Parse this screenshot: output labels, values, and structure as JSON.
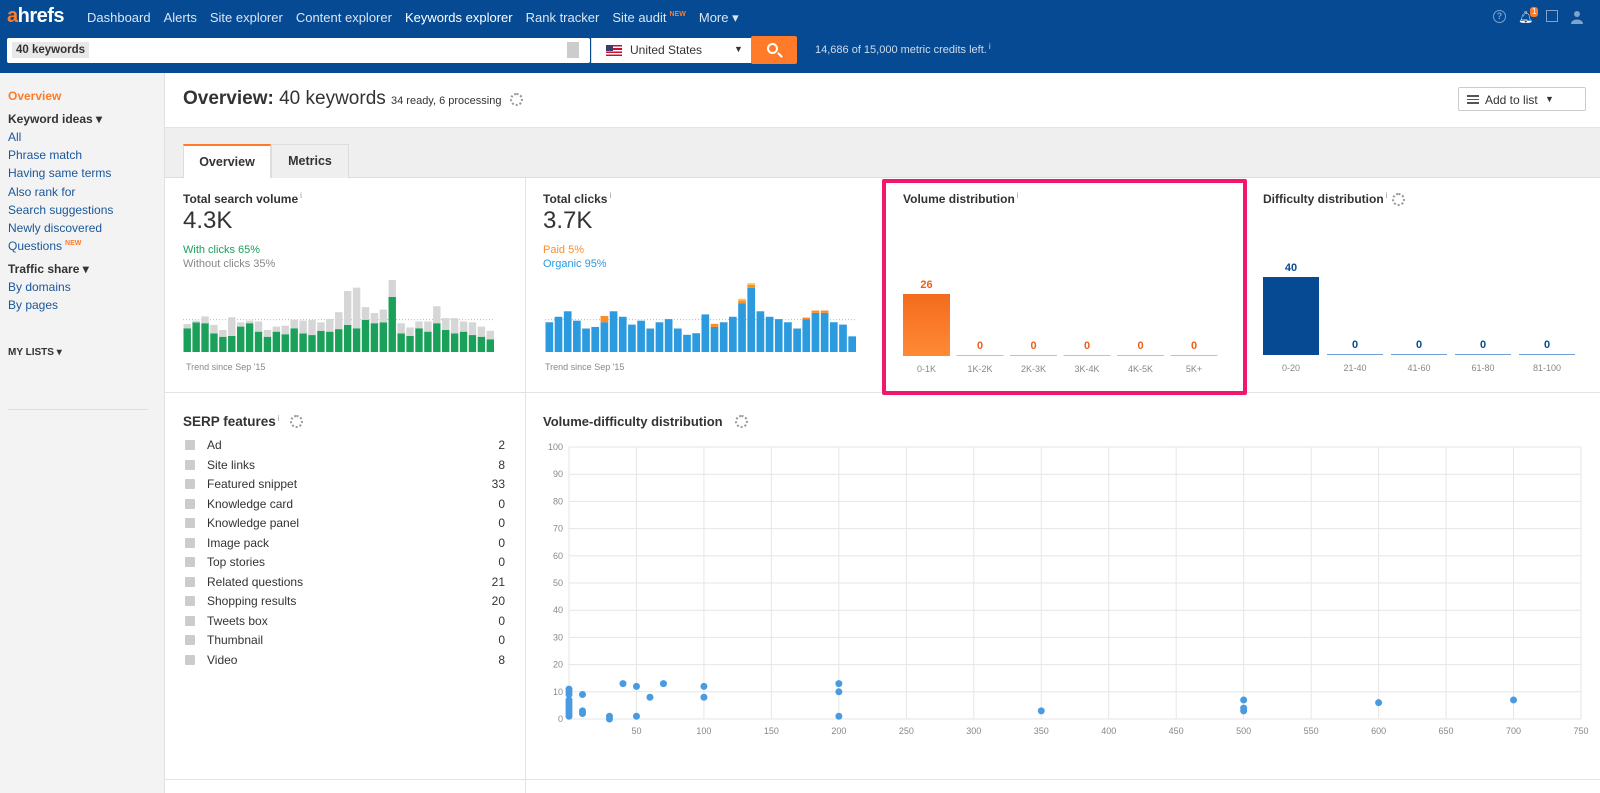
{
  "app": {
    "logo": "ahrefs"
  },
  "nav": {
    "items": [
      "Dashboard",
      "Alerts",
      "Site explorer",
      "Content explorer",
      "Keywords explorer",
      "Rank tracker",
      "Site audit",
      "More ▾"
    ],
    "site_audit_badge": "NEW",
    "notification_count": "1"
  },
  "search": {
    "token": "40 keywords",
    "country": "United States",
    "credits": "14,686 of 15,000 metric credits left."
  },
  "sidebar": {
    "overview": "Overview",
    "keyword_ideas": "Keyword ideas ▾",
    "keyword_items": [
      "All",
      "Phrase match",
      "Having same terms",
      "Also rank for",
      "Search suggestions",
      "Newly discovered",
      "Questions"
    ],
    "questions_badge": "NEW",
    "traffic_share": "Traffic share ▾",
    "traffic_items": [
      "By domains",
      "By pages"
    ],
    "my_lists": "MY LISTS ▾"
  },
  "header": {
    "title_bold": "Overview:",
    "title_rest": " 40 keywords",
    "status": "34 ready, 6 processing",
    "add_to_list": "Add to list"
  },
  "tabs": [
    "Overview",
    "Metrics"
  ],
  "cards": {
    "search_volume": {
      "title": "Total search volume",
      "value": "4.3K",
      "with_clicks": "With clicks 65%",
      "without_clicks": "Without clicks 35%",
      "trend": "Trend since Sep '15"
    },
    "clicks": {
      "title": "Total clicks",
      "value": "3.7K",
      "paid": "Paid 5%",
      "organic": "Organic 95%",
      "trend": "Trend since Sep '15"
    },
    "volume_distribution": {
      "title": "Volume distribution"
    },
    "difficulty_distribution": {
      "title": "Difficulty distribution"
    },
    "serp_features": {
      "title": "SERP features"
    },
    "vd_distribution": {
      "title": "Volume-difficulty distribution"
    }
  },
  "serp_features": [
    {
      "label": "Ad",
      "count": "2",
      "icon": "ad-icon"
    },
    {
      "label": "Site links",
      "count": "8",
      "icon": "link-icon"
    },
    {
      "label": "Featured snippet",
      "count": "33",
      "icon": "quote-icon"
    },
    {
      "label": "Knowledge card",
      "count": "0",
      "icon": "card-icon"
    },
    {
      "label": "Knowledge panel",
      "count": "0",
      "icon": "panel-icon"
    },
    {
      "label": "Image pack",
      "count": "0",
      "icon": "image-pack-icon"
    },
    {
      "label": "Top stories",
      "count": "0",
      "icon": "stories-icon"
    },
    {
      "label": "Related questions",
      "count": "21",
      "icon": "question-icon"
    },
    {
      "label": "Shopping results",
      "count": "20",
      "icon": "cart-icon"
    },
    {
      "label": "Tweets box",
      "count": "0",
      "icon": "twitter-icon"
    },
    {
      "label": "Thumbnail",
      "count": "0",
      "icon": "thumbnail-icon"
    },
    {
      "label": "Video",
      "count": "8",
      "icon": "video-icon"
    }
  ],
  "colors": {
    "brand": "#054a93",
    "accent": "#ff7b29",
    "green": "#1ba05a",
    "blue": "#2b9ade",
    "highlight": "#f0186c"
  },
  "chart_data": [
    {
      "type": "bar",
      "id": "search-volume-trend",
      "stacked": true,
      "series": [
        {
          "color": "#1ba05a",
          "values": [
            28,
            35,
            34,
            22,
            18,
            19,
            30,
            34,
            24,
            18,
            24,
            21,
            28,
            22,
            20,
            25,
            24,
            27,
            32,
            28,
            38,
            34,
            35,
            65,
            22,
            19,
            28,
            24,
            34,
            26,
            22,
            24,
            20,
            18,
            15
          ]
        },
        {
          "color": "#d6d6d6",
          "values": [
            5,
            2,
            8,
            10,
            8,
            22,
            5,
            3,
            12,
            8,
            6,
            10,
            10,
            15,
            18,
            10,
            15,
            20,
            40,
            48,
            15,
            12,
            15,
            20,
            12,
            10,
            8,
            12,
            20,
            14,
            18,
            12,
            15,
            12,
            10
          ]
        }
      ]
    },
    {
      "type": "bar",
      "id": "clicks-trend",
      "stacked": true,
      "series": [
        {
          "color": "#2b9ade",
          "values": [
            38,
            45,
            52,
            40,
            30,
            32,
            38,
            52,
            45,
            35,
            40,
            30,
            38,
            42,
            30,
            22,
            24,
            48,
            32,
            38,
            45,
            62,
            82,
            52,
            45,
            42,
            38,
            30,
            42,
            50,
            50,
            38,
            35,
            20
          ]
        },
        {
          "color": "#ff8c2a",
          "values": [
            0,
            0,
            0,
            0,
            0,
            0,
            8,
            0,
            0,
            0,
            0,
            0,
            0,
            0,
            0,
            0,
            0,
            0,
            4,
            0,
            0,
            4,
            4,
            0,
            0,
            0,
            0,
            0,
            2,
            3,
            3,
            0,
            0,
            0
          ]
        },
        {
          "color": "#f2d13d",
          "values": [
            0,
            0,
            0,
            0,
            0,
            0,
            0,
            0,
            0,
            0,
            0,
            0,
            0,
            0,
            0,
            0,
            0,
            0,
            0,
            0,
            0,
            2,
            2,
            0,
            0,
            0,
            0,
            0,
            0,
            0,
            0,
            0,
            0,
            0
          ]
        }
      ]
    },
    {
      "type": "bar",
      "title": "Volume distribution",
      "categories": [
        "0-1K",
        "1K-2K",
        "2K-3K",
        "3K-4K",
        "4K-5K",
        "5K+"
      ],
      "values": [
        26,
        0,
        0,
        0,
        0,
        0
      ],
      "color": "#ff7b29"
    },
    {
      "type": "bar",
      "title": "Difficulty distribution",
      "categories": [
        "0-20",
        "21-40",
        "41-60",
        "61-80",
        "81-100"
      ],
      "values": [
        40,
        0,
        0,
        0,
        0
      ],
      "color": "#054a93"
    },
    {
      "type": "scatter",
      "title": "Volume-difficulty distribution",
      "xlim": [
        0,
        750
      ],
      "ylim": [
        0,
        100
      ],
      "x_ticks": [
        50,
        100,
        150,
        200,
        250,
        300,
        350,
        400,
        450,
        500,
        550,
        600,
        650,
        700,
        750
      ],
      "y_ticks": [
        0,
        10,
        20,
        30,
        40,
        50,
        60,
        70,
        80,
        90,
        100
      ],
      "grid": true,
      "points": [
        [
          0,
          11
        ],
        [
          0,
          9
        ],
        [
          0,
          7
        ],
        [
          0,
          5
        ],
        [
          0,
          3
        ],
        [
          0,
          1
        ],
        [
          0,
          2
        ],
        [
          0,
          10
        ],
        [
          0,
          6
        ],
        [
          0,
          4
        ],
        [
          10,
          9
        ],
        [
          10,
          3
        ],
        [
          10,
          2
        ],
        [
          30,
          1
        ],
        [
          30,
          0
        ],
        [
          40,
          13
        ],
        [
          50,
          12
        ],
        [
          50,
          1
        ],
        [
          60,
          8
        ],
        [
          70,
          13
        ],
        [
          100,
          12
        ],
        [
          100,
          8
        ],
        [
          200,
          13
        ],
        [
          200,
          10
        ],
        [
          200,
          1
        ],
        [
          350,
          3
        ],
        [
          500,
          7
        ],
        [
          500,
          4
        ],
        [
          500,
          3
        ],
        [
          600,
          6
        ],
        [
          700,
          7
        ]
      ]
    }
  ]
}
